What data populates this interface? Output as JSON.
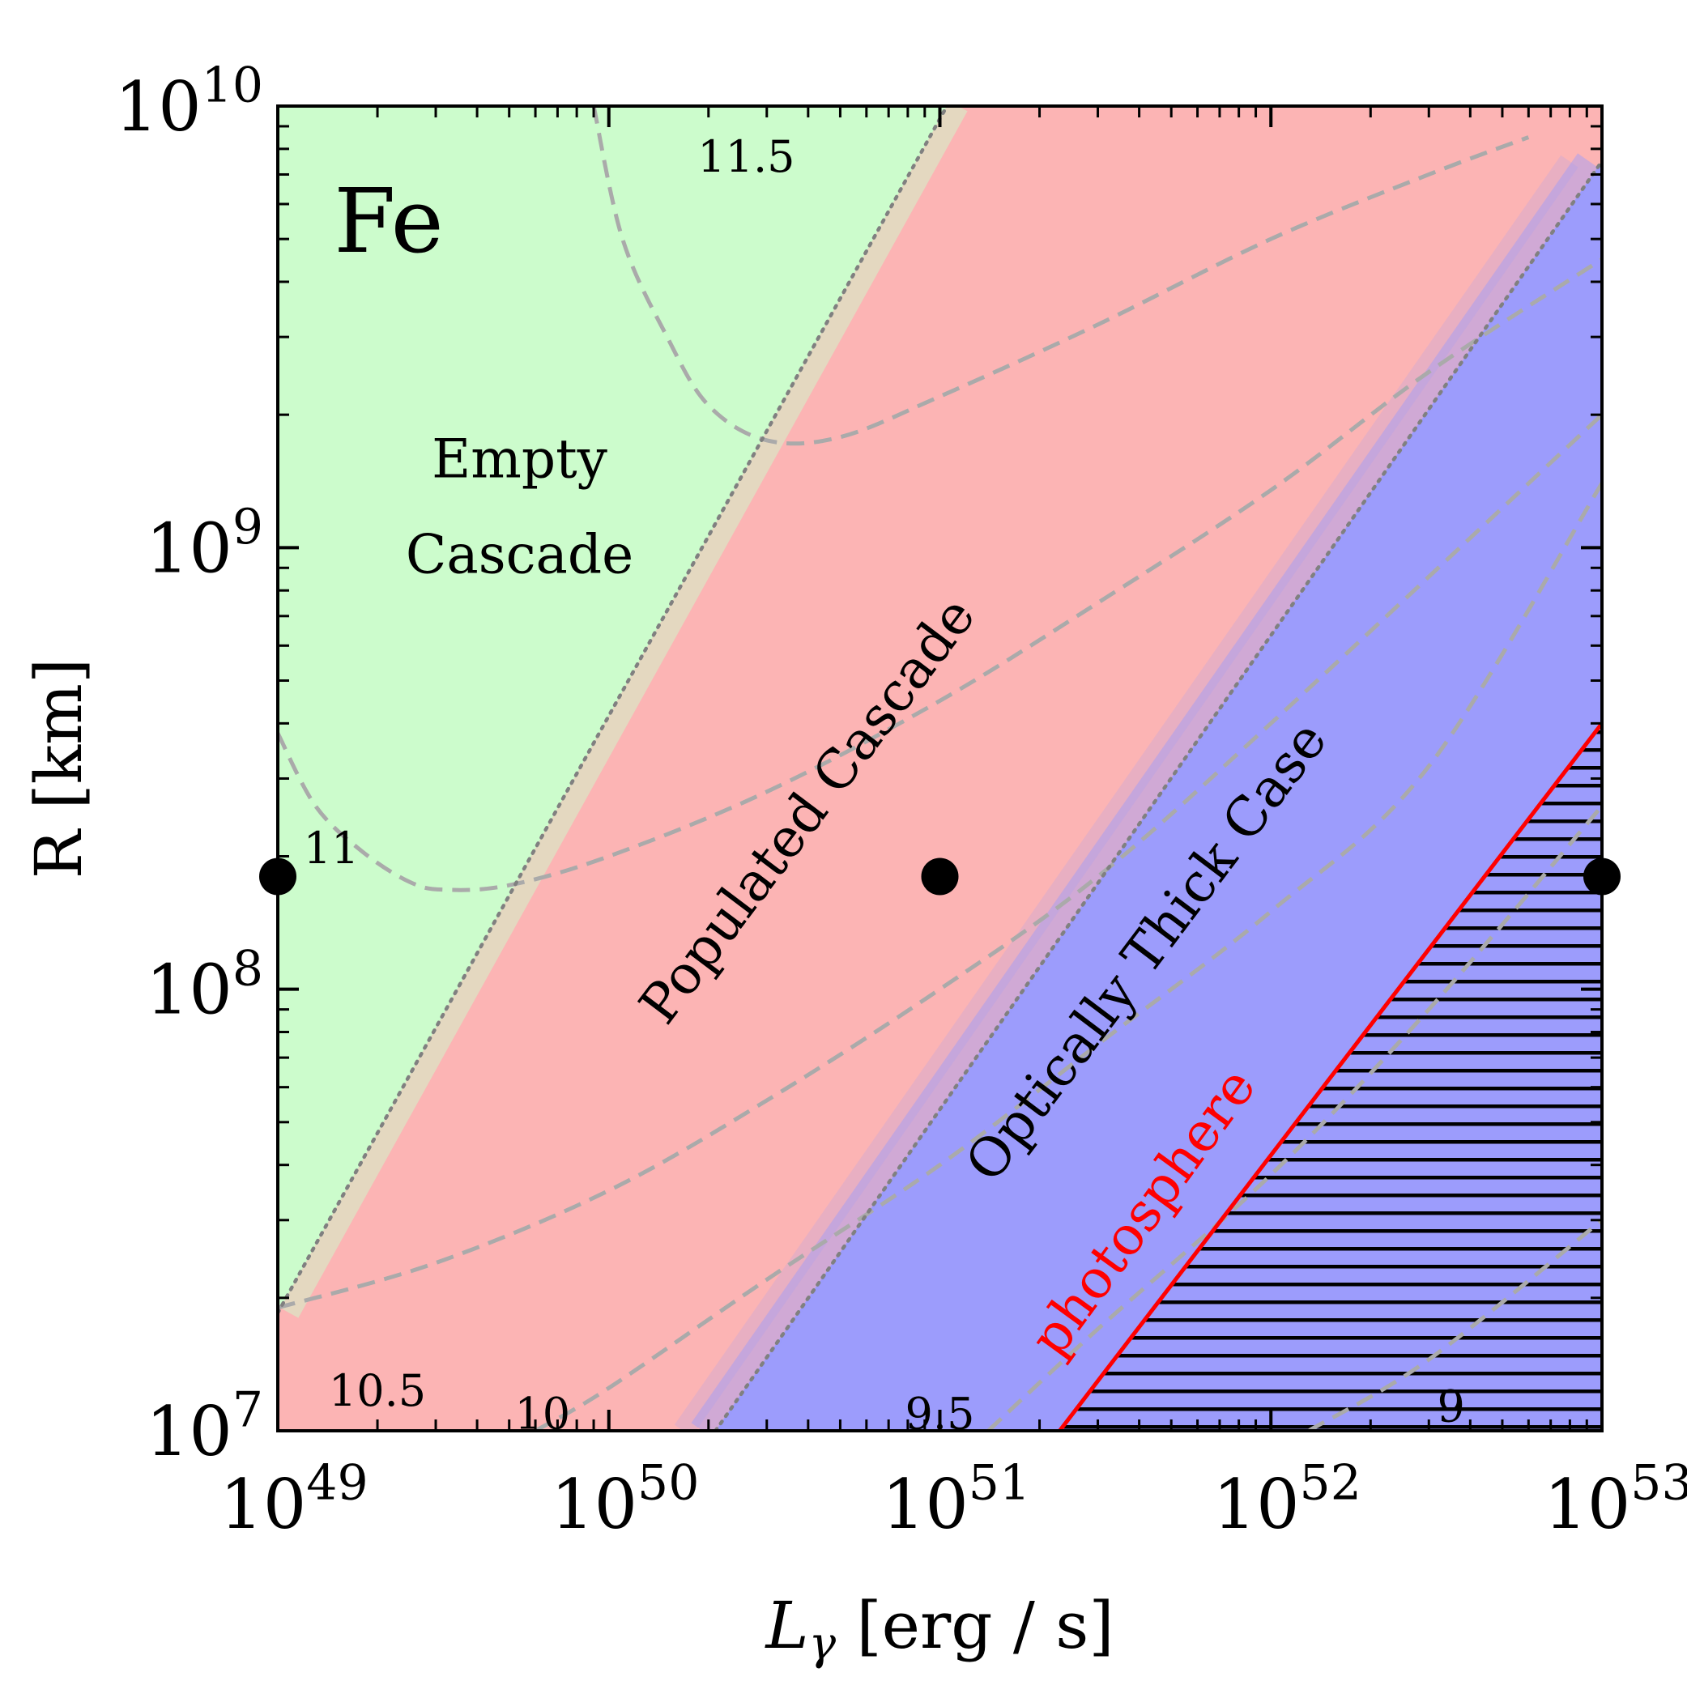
{
  "chart_data": {
    "type": "heatmap",
    "title": "",
    "panel_label": "Fe",
    "xlabel": {
      "symbol": "L",
      "subscript": "γ",
      "unit": "[erg / s]"
    },
    "ylabel": "R [km]",
    "x_scale": "log",
    "y_scale": "log",
    "xlim": [
      1e+49,
      1e+53
    ],
    "ylim": [
      10000000.0,
      10000000000.0
    ],
    "x_ticks": [
      {
        "value": 1e+49,
        "base": "10",
        "exp": "49"
      },
      {
        "value": 1e+50,
        "base": "10",
        "exp": "50"
      },
      {
        "value": 1e+51,
        "base": "10",
        "exp": "51"
      },
      {
        "value": 1e+52,
        "base": "10",
        "exp": "52"
      },
      {
        "value": 1e+53,
        "base": "10",
        "exp": "53"
      }
    ],
    "y_ticks": [
      {
        "value": 10000000.0,
        "base": "10",
        "exp": "7"
      },
      {
        "value": 100000000.0,
        "base": "10",
        "exp": "8"
      },
      {
        "value": 1000000000.0,
        "base": "10",
        "exp": "9"
      },
      {
        "value": 10000000000.0,
        "base": "10",
        "exp": "10"
      }
    ],
    "colors": {
      "empty": "#ccfccc",
      "populated": "#fcb4b4",
      "thick": "#9c9cfc",
      "contour": "#aaaaaa",
      "boundary": "#808080",
      "photosphere": "#ff0000",
      "hatch": "#000000",
      "marker": "#000000"
    },
    "regions": [
      {
        "name": "Empty Cascade",
        "lines": [
          "Empty",
          "Cascade"
        ],
        "label_at": [
          1.95e+49,
          1120000000.0
        ]
      },
      {
        "name": "Populated Cascade",
        "lines": [
          "Populated Cascade"
        ],
        "label_at": [
          4.4e+50,
          240000000.0
        ],
        "angle_deg": -53
      },
      {
        "name": "Optically Thick Case",
        "lines": [
          "Optically Thick Case"
        ],
        "label_at": [
          5.2e+51,
          115000000.0
        ],
        "angle_deg": -53
      }
    ],
    "region_boundaries": [
      {
        "name": "empty-populated",
        "style": "dotted",
        "from": [
          1e+49,
          18500000.0
        ],
        "to": [
          1.05e+51,
          10000000000.0
        ]
      },
      {
        "name": "populated-thick",
        "style": "dotted",
        "from": [
          2.1e+50,
          10000000.0
        ],
        "to": [
          1e+53,
          7500000000.0
        ]
      }
    ],
    "photosphere": {
      "label": "photosphere",
      "points": [
        [
          2.3e+51,
          10000000.0
        ],
        [
          1e+53,
          400000000.0
        ]
      ],
      "label_at": [
        6.2e+51,
        35000000.0
      ],
      "angle_deg": -54
    },
    "contours": [
      {
        "level": "11.5",
        "label_at": [
          2.6e+50,
          7100000000.0
        ],
        "points": [
          [
            9e+49,
            10000000000.0
          ],
          [
            1.1e+50,
            5000000000.0
          ],
          [
            1.5e+50,
            3000000000.0
          ],
          [
            2e+50,
            2100000000.0
          ],
          [
            3e+50,
            1750000000.0
          ],
          [
            5e+50,
            1780000000.0
          ],
          [
            1e+51,
            2200000000.0
          ],
          [
            3e+51,
            3200000000.0
          ],
          [
            1e+52,
            5000000000.0
          ],
          [
            3e+52,
            7000000000.0
          ],
          [
            6e+52,
            8500000000.0
          ]
        ]
      },
      {
        "level": "11",
        "label_at": [
          1.45e+49,
          193000000.0
        ],
        "points": [
          [
            1e+49,
            380000000.0
          ],
          [
            1.3e+49,
            260000000.0
          ],
          [
            1.8e+49,
            205000000.0
          ],
          [
            2.5e+49,
            175000000.0
          ],
          [
            3.2e+49,
            168000000.0
          ],
          [
            5e+49,
            172000000.0
          ],
          [
            1e+50,
            200000000.0
          ],
          [
            3e+50,
            280000000.0
          ],
          [
            1e+51,
            450000000.0
          ],
          [
            3e+51,
            750000000.0
          ],
          [
            1e+52,
            1350000000.0
          ],
          [
            3e+52,
            2500000000.0
          ],
          [
            1e+53,
            4500000000.0
          ]
        ]
      },
      {
        "level": "10.5",
        "label_at": [
          2e+49,
          11400000.0
        ],
        "points": [
          [
            1e+49,
            19000000.0
          ],
          [
            3e+49,
            24000000.0
          ],
          [
            1e+50,
            35000000.0
          ],
          [
            3e+50,
            56000000.0
          ],
          [
            1e+51,
            100000000.0
          ],
          [
            3e+51,
            180000000.0
          ],
          [
            1e+52,
            400000000.0
          ],
          [
            1e+53,
            2000000000.0
          ]
        ]
      },
      {
        "level": "10",
        "label_at": [
          6.3e+49,
          10100000.0
        ],
        "points": [
          [
            6e+49,
            10000000.0
          ],
          [
            1e+50,
            12500000.0
          ],
          [
            3e+50,
            22000000.0
          ],
          [
            1e+51,
            40000000.0
          ],
          [
            3e+51,
            75000000.0
          ],
          [
            1e+52,
            150000000.0
          ],
          [
            3e+52,
            320000000.0
          ],
          [
            1e+53,
            1400000000.0
          ]
        ]
      },
      {
        "level": "9.5",
        "label_at": [
          1e+51,
          10100000.0
        ],
        "points": [
          [
            1.4e+51,
            10000000.0
          ],
          [
            3e+51,
            17000000.0
          ],
          [
            1e+52,
            38000000.0
          ],
          [
            3e+52,
            90000000.0
          ],
          [
            1e+53,
            260000000.0
          ]
        ]
      },
      {
        "level": "9",
        "label_at": [
          3.5e+52,
          10500000.0
        ],
        "points": [
          [
            1.3e+52,
            10000000.0
          ],
          [
            3e+52,
            14500000.0
          ],
          [
            1e+53,
            30000000.0
          ]
        ]
      }
    ],
    "markers": [
      {
        "x": 1e+49,
        "y": 180000000.0
      },
      {
        "x": 1e+51,
        "y": 180000000.0
      },
      {
        "x": 1e+53,
        "y": 180000000.0
      }
    ]
  }
}
